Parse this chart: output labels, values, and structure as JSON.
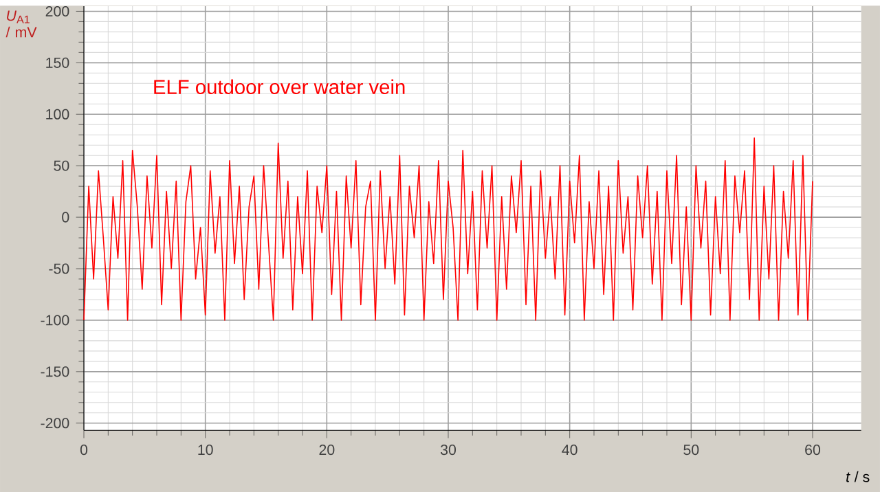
{
  "chart_data": {
    "type": "line",
    "xlabel": "*t* / s",
    "ylabel": "*U*$_{A1}$ / mV",
    "annotations": [
      "ELF outdoor over water vein"
    ],
    "xlim": [
      0,
      64
    ],
    "ylim": [
      -207,
      205
    ],
    "xticks": [
      0,
      10,
      20,
      30,
      40,
      50,
      60
    ],
    "yticks": [
      -200,
      -150,
      -100,
      -50,
      0,
      50,
      100,
      150,
      200
    ],
    "grid": true,
    "marker": "none",
    "line_style": "solid",
    "x": [
      0,
      0.4,
      0.8,
      1.2,
      1.6,
      2,
      2.4,
      2.8,
      3.2,
      3.6,
      4,
      4.4,
      4.8,
      5.2,
      5.6,
      6,
      6.4,
      6.8,
      7.2,
      7.6,
      8,
      8.4,
      8.8,
      9.2,
      9.6,
      10,
      10.4,
      10.8,
      11.2,
      11.6,
      12,
      12.4,
      12.8,
      13.2,
      13.6,
      14,
      14.4,
      14.8,
      15.2,
      15.6,
      16,
      16.4,
      16.8,
      17.2,
      17.6,
      18,
      18.4,
      18.8,
      19.2,
      19.6,
      20,
      20.4,
      20.8,
      21.2,
      21.6,
      22,
      22.4,
      22.8,
      23.2,
      23.6,
      24,
      24.4,
      24.8,
      25.2,
      25.6,
      26,
      26.4,
      26.8,
      27.2,
      27.6,
      28,
      28.4,
      28.8,
      29.2,
      29.6,
      30,
      30.4,
      30.8,
      31.2,
      31.6,
      32,
      32.4,
      32.8,
      33.2,
      33.6,
      34,
      34.4,
      34.8,
      35.2,
      35.6,
      36,
      36.4,
      36.8,
      37.2,
      37.6,
      38,
      38.4,
      38.8,
      39.2,
      39.6,
      40,
      40.4,
      40.8,
      41.2,
      41.6,
      42,
      42.4,
      42.8,
      43.2,
      43.6,
      44,
      44.4,
      44.8,
      45.2,
      45.6,
      46,
      46.4,
      46.8,
      47.2,
      47.6,
      48,
      48.4,
      48.8,
      49.2,
      49.6,
      50,
      50.4,
      50.8,
      51.2,
      51.6,
      52,
      52.4,
      52.8,
      53.2,
      53.6,
      54,
      54.4,
      54.8,
      55.2,
      55.6,
      56,
      56.4,
      56.8,
      57.2,
      57.6,
      58,
      58.4,
      58.8,
      59.2,
      59.6,
      60
    ],
    "series": [
      {
        "color": "#ff0000",
        "values": [
          -100,
          30,
          -60,
          45,
          -20,
          -90,
          20,
          -40,
          55,
          -100,
          65,
          10,
          -70,
          40,
          -30,
          60,
          -85,
          25,
          -50,
          35,
          -100,
          15,
          50,
          -60,
          -10,
          -95,
          45,
          -35,
          20,
          -100,
          55,
          -45,
          30,
          -80,
          10,
          40,
          -70,
          50,
          -25,
          -100,
          72,
          -40,
          35,
          -90,
          20,
          -55,
          45,
          -100,
          30,
          -15,
          50,
          -75,
          25,
          -100,
          40,
          -30,
          55,
          -85,
          10,
          35,
          -100,
          45,
          -50,
          20,
          -65,
          60,
          -95,
          30,
          -20,
          50,
          -100,
          15,
          -45,
          55,
          -80,
          35,
          -10,
          -100,
          65,
          -55,
          25,
          -90,
          45,
          -30,
          50,
          -100,
          20,
          -70,
          40,
          -15,
          55,
          -85,
          30,
          -100,
          45,
          -40,
          20,
          -60,
          50,
          -95,
          35,
          -25,
          60,
          -100,
          15,
          -50,
          45,
          -75,
          30,
          -100,
          55,
          -35,
          20,
          -90,
          40,
          -20,
          50,
          -65,
          25,
          -100,
          45,
          -45,
          60,
          -85,
          10,
          -100,
          50,
          -30,
          35,
          -95,
          20,
          -55,
          55,
          -100,
          40,
          -15,
          45,
          -80,
          77,
          -100,
          30,
          -60,
          50,
          -100,
          25,
          -40,
          55,
          -95,
          60,
          -100,
          35
        ]
      }
    ]
  }
}
